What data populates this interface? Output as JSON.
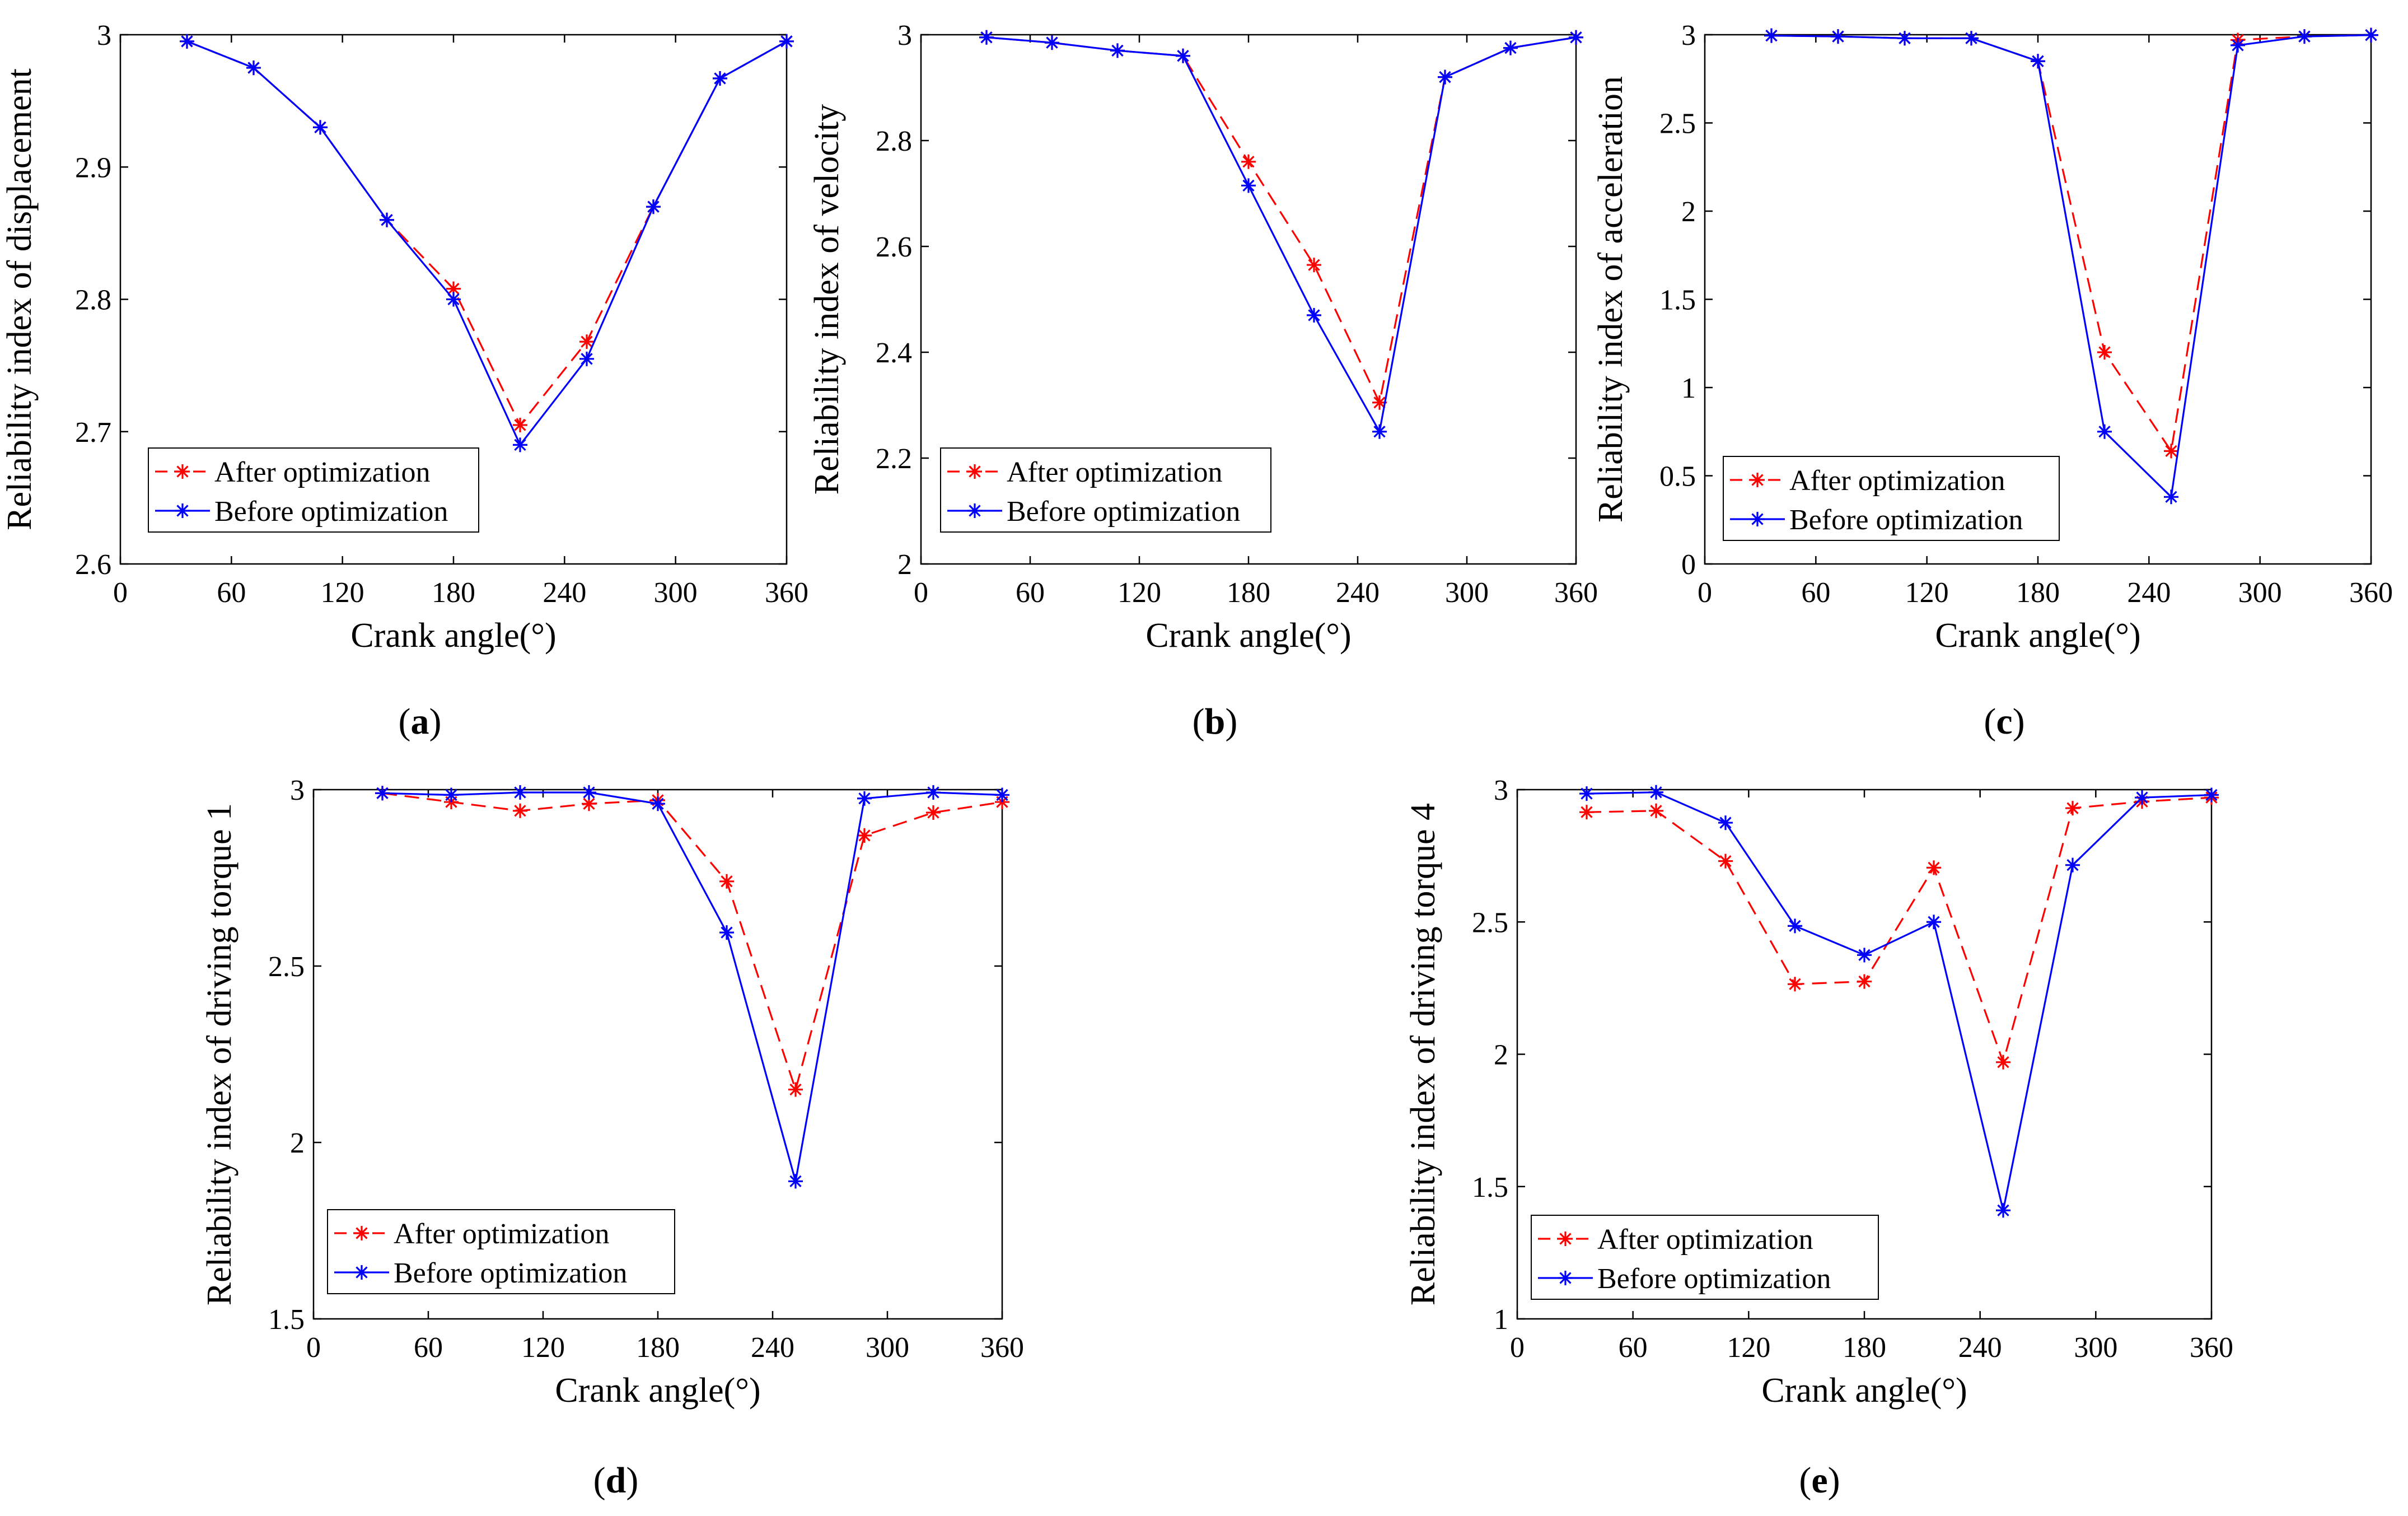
{
  "figure": {
    "panels": [
      "a",
      "b",
      "c",
      "d",
      "e"
    ]
  },
  "colors": {
    "after": "#ff0000",
    "before": "#0000ff",
    "axis": "#000000",
    "legend_border": "#000000"
  },
  "chart_data": [
    {
      "id": "a",
      "type": "line",
      "label": "a",
      "xlabel": "Crank angle(°)",
      "ylabel": "Reliability index of displacement",
      "xlim": [
        0,
        360
      ],
      "ylim": [
        2.6,
        3
      ],
      "xticks": [
        0,
        60,
        120,
        180,
        240,
        300,
        360
      ],
      "yticks": [
        2.6,
        2.7,
        2.8,
        2.9,
        3
      ],
      "ytick_labels": [
        "2.6",
        "2.7",
        "2.8",
        "2.9",
        "3"
      ],
      "legend_position": "bottom-left",
      "x": [
        36,
        72,
        108,
        144,
        180,
        216,
        252,
        288,
        324,
        360
      ],
      "series": [
        {
          "name": "After optimization",
          "style": "dashed",
          "color": "#ff0000",
          "values": [
            2.995,
            2.975,
            2.93,
            2.86,
            2.808,
            2.705,
            2.768,
            2.87,
            2.967,
            2.995
          ]
        },
        {
          "name": "Before optimization",
          "style": "solid",
          "color": "#0000ff",
          "values": [
            2.995,
            2.975,
            2.93,
            2.86,
            2.8,
            2.69,
            2.755,
            2.87,
            2.967,
            2.995
          ]
        }
      ]
    },
    {
      "id": "b",
      "type": "line",
      "label": "b",
      "xlabel": "Crank angle(°)",
      "ylabel": "Reliability index of velocity",
      "xlim": [
        0,
        360
      ],
      "ylim": [
        2,
        3
      ],
      "xticks": [
        0,
        60,
        120,
        180,
        240,
        300,
        360
      ],
      "yticks": [
        2,
        2.2,
        2.4,
        2.6,
        2.8,
        3
      ],
      "ytick_labels": [
        "2",
        "2.2",
        "2.4",
        "2.6",
        "2.8",
        "3"
      ],
      "legend_position": "bottom-left",
      "x": [
        36,
        72,
        108,
        144,
        180,
        216,
        252,
        288,
        324,
        360
      ],
      "series": [
        {
          "name": "After optimization",
          "style": "dashed",
          "color": "#ff0000",
          "values": [
            2.995,
            2.985,
            2.97,
            2.96,
            2.76,
            2.565,
            2.305,
            2.92,
            2.975,
            2.995
          ]
        },
        {
          "name": "Before optimization",
          "style": "solid",
          "color": "#0000ff",
          "values": [
            2.995,
            2.985,
            2.97,
            2.96,
            2.715,
            2.47,
            2.25,
            2.92,
            2.975,
            2.995
          ]
        }
      ]
    },
    {
      "id": "c",
      "type": "line",
      "label": "c",
      "xlabel": "Crank angle(°)",
      "ylabel": "Reliability index of acceleration",
      "xlim": [
        0,
        360
      ],
      "ylim": [
        0,
        3
      ],
      "xticks": [
        0,
        60,
        120,
        180,
        240,
        300,
        360
      ],
      "yticks": [
        0,
        0.5,
        1,
        1.5,
        2,
        2.5,
        3
      ],
      "ytick_labels": [
        "0",
        "0.5",
        "1",
        "1.5",
        "2",
        "2.5",
        "3"
      ],
      "legend_position": "bottom-left",
      "x": [
        36,
        72,
        108,
        144,
        180,
        216,
        252,
        288,
        324,
        360
      ],
      "series": [
        {
          "name": "After optimization",
          "style": "dashed",
          "color": "#ff0000",
          "values": [
            2.995,
            2.99,
            2.98,
            2.98,
            2.85,
            1.2,
            0.64,
            2.97,
            2.99,
            2.998
          ]
        },
        {
          "name": "Before optimization",
          "style": "solid",
          "color": "#0000ff",
          "values": [
            2.995,
            2.99,
            2.98,
            2.98,
            2.85,
            0.75,
            0.38,
            2.94,
            2.99,
            2.998
          ]
        }
      ]
    },
    {
      "id": "d",
      "type": "line",
      "label": "d",
      "xlabel": "Crank angle(°)",
      "ylabel": "Reliability index of driving torque 1",
      "xlim": [
        0,
        360
      ],
      "ylim": [
        1.5,
        3
      ],
      "xticks": [
        0,
        60,
        120,
        180,
        240,
        300,
        360
      ],
      "yticks": [
        1.5,
        2,
        2.5,
        3
      ],
      "ytick_labels": [
        "1.5",
        "2",
        "2.5",
        "3"
      ],
      "legend_position": "bottom-left",
      "x": [
        36,
        72,
        108,
        144,
        180,
        216,
        252,
        288,
        324,
        360
      ],
      "series": [
        {
          "name": "After optimization",
          "style": "dashed",
          "color": "#ff0000",
          "values": [
            2.99,
            2.965,
            2.94,
            2.96,
            2.97,
            2.74,
            2.15,
            2.87,
            2.935,
            2.965
          ]
        },
        {
          "name": "Before optimization",
          "style": "solid",
          "color": "#0000ff",
          "values": [
            2.99,
            2.985,
            2.992,
            2.992,
            2.96,
            2.595,
            1.89,
            2.975,
            2.992,
            2.985
          ]
        }
      ]
    },
    {
      "id": "e",
      "type": "line",
      "label": "e",
      "xlabel": "Crank angle(°)",
      "ylabel": "Reliability index of driving torque 4",
      "xlim": [
        0,
        360
      ],
      "ylim": [
        1,
        3
      ],
      "xticks": [
        0,
        60,
        120,
        180,
        240,
        300,
        360
      ],
      "yticks": [
        1,
        1.5,
        2,
        2.5,
        3
      ],
      "ytick_labels": [
        "1",
        "1.5",
        "2",
        "2.5",
        "3"
      ],
      "legend_position": "bottom-left",
      "x": [
        36,
        72,
        108,
        144,
        180,
        216,
        252,
        288,
        324,
        360
      ],
      "series": [
        {
          "name": "After optimization",
          "style": "dashed",
          "color": "#ff0000",
          "values": [
            2.915,
            2.92,
            2.73,
            2.265,
            2.275,
            2.705,
            1.97,
            2.93,
            2.955,
            2.97
          ]
        },
        {
          "name": "Before optimization",
          "style": "solid",
          "color": "#0000ff",
          "values": [
            2.985,
            2.99,
            2.875,
            2.485,
            2.375,
            2.5,
            1.41,
            2.715,
            2.97,
            2.98
          ]
        }
      ]
    }
  ]
}
